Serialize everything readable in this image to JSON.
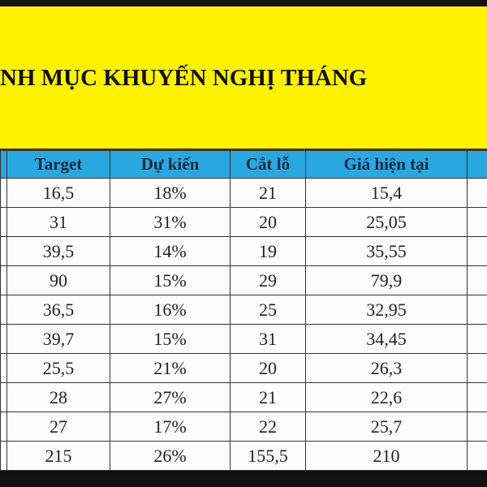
{
  "title": "NH MỤC KHUYẾN NGHỊ THÁNG",
  "columns": [
    "",
    "Target",
    "Dự kiến",
    "Cắt lỗ",
    "Giá hiện tại",
    ""
  ],
  "rows": [
    [
      "16,5",
      "18%",
      "21",
      "15,4"
    ],
    [
      "31",
      "31%",
      "20",
      "25,05"
    ],
    [
      "39,5",
      "14%",
      "19",
      "35,55"
    ],
    [
      "90",
      "15%",
      "29",
      "79,9"
    ],
    [
      "36,5",
      "16%",
      "25",
      "32,95"
    ],
    [
      "39,7",
      "15%",
      "31",
      "34,45"
    ],
    [
      "25,5",
      "21%",
      "20",
      "26,3"
    ],
    [
      "28",
      "27%",
      "21",
      "22,6"
    ],
    [
      "27",
      "17%",
      "22",
      "25,7"
    ],
    [
      "215",
      "26%",
      "155,5",
      "210"
    ]
  ],
  "colors": {
    "banner": "#fff200",
    "header": "#2aa7df"
  }
}
